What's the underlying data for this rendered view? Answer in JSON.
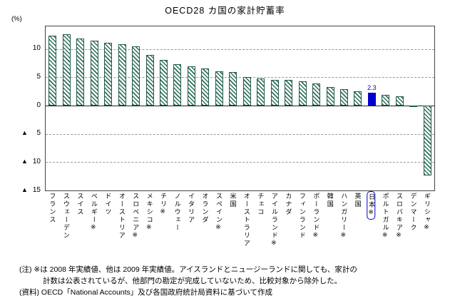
{
  "title": "OECD28 カ国の家計貯蓄率",
  "y_axis": {
    "unit": "(%)",
    "ticks": [
      {
        "value": 10,
        "label": "10",
        "prefix": "",
        "line": "dashed"
      },
      {
        "value": 5,
        "label": "5",
        "prefix": "",
        "line": "dashed"
      },
      {
        "value": 0,
        "label": "0",
        "prefix": "",
        "line": "solid"
      },
      {
        "value": -5,
        "label": "5",
        "prefix": "▲",
        "line": "dashed"
      },
      {
        "value": -10,
        "label": "10",
        "prefix": "▲",
        "line": "dashed"
      },
      {
        "value": -15,
        "label": "15",
        "prefix": "▲",
        "line": "none"
      }
    ]
  },
  "chart_data": {
    "type": "bar",
    "title": "OECD28 カ国の家計貯蓄率",
    "ylabel": "(%)",
    "ylim": [
      -15,
      14
    ],
    "grid": "dashed-horizontal",
    "categories": [
      "フランス",
      "スウェーデン",
      "スイス",
      "ベルギー※",
      "ドイツ",
      "オーストリア",
      "スロベニア※",
      "メキシコ※",
      "チリ※",
      "ノルウェー",
      "イタリア",
      "オランダ",
      "スペイン※",
      "米国",
      "オーストラリア",
      "チェコ",
      "アイルランド※",
      "カナダ",
      "フィンランド",
      "ポーランド※",
      "韓国",
      "ハンガリー※",
      "英国",
      "日本※",
      "ポルトガル※",
      "スロバキア※",
      "デンマーク",
      "ギリシャ※"
    ],
    "values": [
      12.4,
      12.6,
      11.9,
      11.5,
      11.1,
      10.9,
      10.5,
      8.9,
      8.1,
      7.3,
      6.9,
      6.6,
      6.0,
      5.9,
      5.0,
      4.8,
      4.6,
      4.5,
      4.3,
      3.9,
      3.3,
      2.9,
      2.5,
      2.3,
      1.9,
      1.6,
      -0.3,
      -12.3
    ],
    "highlight": {
      "index": 23,
      "label": "2.3"
    },
    "colors": {
      "bar": "#2e6e5c",
      "highlight": "#0000cd",
      "gridline": "#999999",
      "axis": "#222222"
    }
  },
  "notes": [
    {
      "text": "(注) ※は 2008 年実績値、他は 2009 年実績値。アイスランドとニュージーランドに関しても、家計の",
      "indent": 0
    },
    {
      "text": "計数は公表されているが、他部門の勘定が完成していないため、比較対象から除外した。",
      "indent": 1
    },
    {
      "text": "(資料) OECD「National Accounts」及び各国政府統計局資料に基づいて作成",
      "indent": 0
    }
  ]
}
